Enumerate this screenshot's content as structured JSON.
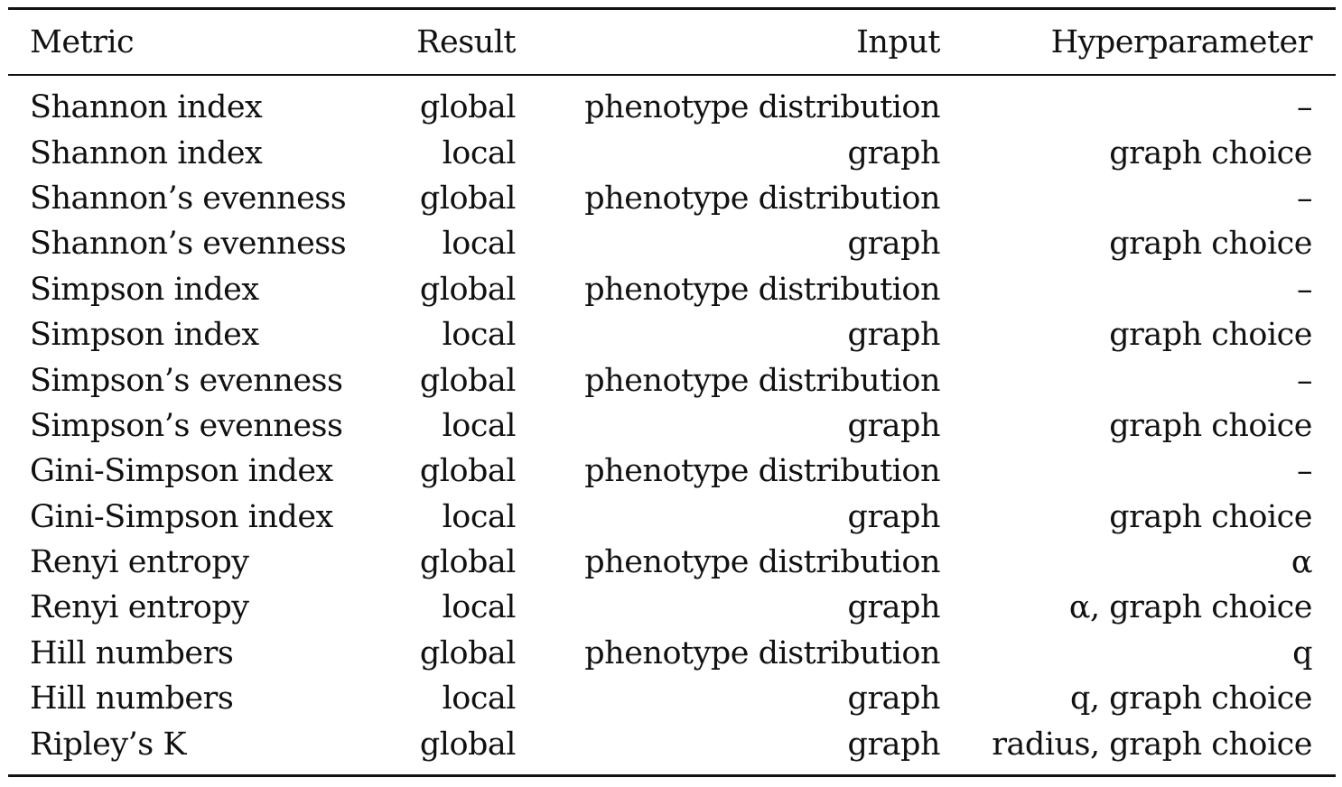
{
  "table": {
    "headers": {
      "metric": "Metric",
      "result": "Result",
      "input": "Input",
      "hyperparameter": "Hyperparameter"
    },
    "rows": [
      {
        "metric": "Shannon index",
        "result": "global",
        "input": "phenotype distribution",
        "hyperparameter": "–"
      },
      {
        "metric": "Shannon index",
        "result": "local",
        "input": "graph",
        "hyperparameter": "graph choice"
      },
      {
        "metric": "Shannon’s evenness",
        "result": "global",
        "input": "phenotype distribution",
        "hyperparameter": "–"
      },
      {
        "metric": "Shannon’s evenness",
        "result": "local",
        "input": "graph",
        "hyperparameter": "graph choice"
      },
      {
        "metric": "Simpson index",
        "result": "global",
        "input": "phenotype distribution",
        "hyperparameter": "–"
      },
      {
        "metric": "Simpson index",
        "result": "local",
        "input": "graph",
        "hyperparameter": "graph choice"
      },
      {
        "metric": "Simpson’s evenness",
        "result": "global",
        "input": "phenotype distribution",
        "hyperparameter": "–"
      },
      {
        "metric": "Simpson’s evenness",
        "result": "local",
        "input": "graph",
        "hyperparameter": "graph choice"
      },
      {
        "metric": "Gini-Simpson index",
        "result": "global",
        "input": "phenotype distribution",
        "hyperparameter": "–"
      },
      {
        "metric": "Gini-Simpson index",
        "result": "local",
        "input": "graph",
        "hyperparameter": "graph choice"
      },
      {
        "metric": "Renyi entropy",
        "result": "global",
        "input": "phenotype distribution",
        "hyperparameter": "α"
      },
      {
        "metric": "Renyi entropy",
        "result": "local",
        "input": "graph",
        "hyperparameter": "α, graph choice"
      },
      {
        "metric": "Hill numbers",
        "result": "global",
        "input": "phenotype distribution",
        "hyperparameter": "q"
      },
      {
        "metric": "Hill numbers",
        "result": "local",
        "input": "graph",
        "hyperparameter": "q, graph choice"
      },
      {
        "metric": "Ripley’s K",
        "result": "global",
        "input": "graph",
        "hyperparameter": "radius, graph choice"
      }
    ]
  }
}
